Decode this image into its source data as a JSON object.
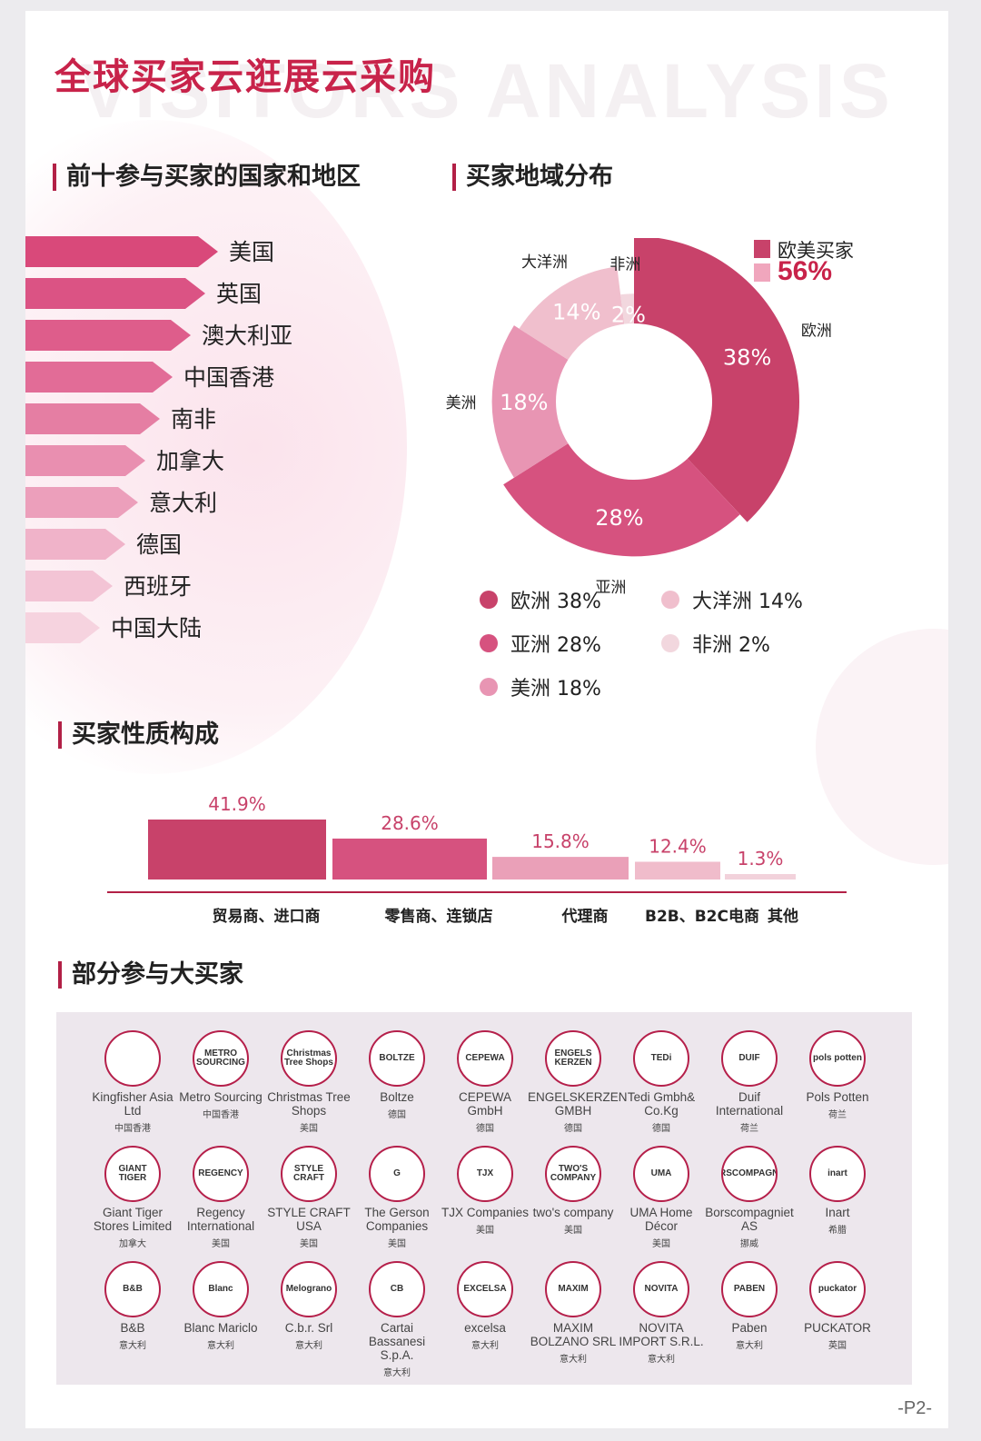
{
  "header": {
    "title": "全球买家云逛展云采购",
    "watermark": "VISITORS ANALYSIS"
  },
  "countries": {
    "heading": "前十参与买家的国家和地区",
    "items": [
      "美国",
      "英国",
      "澳大利亚",
      "中国香港",
      "南非",
      "加拿大",
      "意大利",
      "德国",
      "西班牙",
      "中国大陆"
    ]
  },
  "regions": {
    "heading": "买家地域分布",
    "badge_label": "欧美买家",
    "badge_value": "56%"
  },
  "buyer_types": {
    "heading": "买家性质构成"
  },
  "chart_data": [
    {
      "type": "pie",
      "style": "rose-donut",
      "labels": [
        "欧洲",
        "亚洲",
        "美洲",
        "大洋洲",
        "非洲"
      ],
      "values": [
        38,
        28,
        18,
        14,
        2
      ],
      "value_labels": [
        "38%",
        "28%",
        "18%",
        "14%",
        "2%"
      ],
      "legend": [
        "欧洲 38%",
        "亚洲 28%",
        "美洲 18%",
        "大洋洲 14%",
        "非洲 2%"
      ],
      "colors": [
        "#c8426a",
        "#d6527f",
        "#e895b3",
        "#f0bfcd",
        "#f2d7de"
      ]
    },
    {
      "type": "bar",
      "categories": [
        "贸易商、进口商",
        "零售商、连锁店",
        "代理商",
        "B2B、B2C电商",
        "其他"
      ],
      "values": [
        41.9,
        28.6,
        15.8,
        12.4,
        1.3
      ],
      "value_labels": [
        "41.9%",
        "28.6%",
        "15.8%",
        "12.4%",
        "1.3%"
      ],
      "colors": [
        "#c8426a",
        "#d6527f",
        "#eaa0b8",
        "#f0bccb",
        "#f2d2db"
      ]
    }
  ],
  "buyers": {
    "heading": "部分参与大买家",
    "items": [
      {
        "logo": "",
        "name": "Kingfisher Asia Ltd",
        "country": "中国香港"
      },
      {
        "logo": "METRO SOURCING",
        "name": "Metro Sourcing",
        "country": "中国香港"
      },
      {
        "logo": "Christmas Tree Shops",
        "name": "Christmas Tree Shops",
        "country": "美国"
      },
      {
        "logo": "BOLTZE",
        "name": "Boltze",
        "country": "德国"
      },
      {
        "logo": "CEPEWA",
        "name": "CEPEWA GmbH",
        "country": "德国"
      },
      {
        "logo": "ENGELS KERZEN",
        "name": "ENGELSKERZEN GMBH",
        "country": "德国"
      },
      {
        "logo": "TEDi",
        "name": "Tedi Gmbh& Co.Kg",
        "country": "德国"
      },
      {
        "logo": "DUIF",
        "name": "Duif International",
        "country": "荷兰"
      },
      {
        "logo": "pols potten",
        "name": "Pols Potten",
        "country": "荷兰"
      },
      {
        "logo": "GIANT TIGER",
        "name": "Giant Tiger Stores Limited",
        "country": "加拿大"
      },
      {
        "logo": "REGENCY",
        "name": "Regency International",
        "country": "美国"
      },
      {
        "logo": "STYLE CRAFT",
        "name": "STYLE CRAFT USA",
        "country": "美国"
      },
      {
        "logo": "G",
        "name": "The Gerson Companies",
        "country": "美国"
      },
      {
        "logo": "TJX",
        "name": "TJX Companies",
        "country": "美国"
      },
      {
        "logo": "TWO'S COMPANY",
        "name": "two's company",
        "country": "美国"
      },
      {
        "logo": "UMA",
        "name": "UMA Home Décor",
        "country": "美国"
      },
      {
        "logo": "BORSCOMPAGNIET",
        "name": "Borscompagniet AS",
        "country": "挪威"
      },
      {
        "logo": "inart",
        "name": "Inart",
        "country": "希腊"
      },
      {
        "logo": "B&B",
        "name": "B&B",
        "country": "意大利"
      },
      {
        "logo": "Blanc",
        "name": "Blanc Mariclo",
        "country": "意大利"
      },
      {
        "logo": "Melograno",
        "name": "C.b.r. Srl",
        "country": "意大利"
      },
      {
        "logo": "CB",
        "name": "Cartai Bassanesi S.p.A.",
        "country": "意大利"
      },
      {
        "logo": "EXCELSA",
        "name": "excelsa",
        "country": "意大利"
      },
      {
        "logo": "MAXIM",
        "name": "MAXIM BOLZANO SRL",
        "country": "意大利"
      },
      {
        "logo": "NOVITA",
        "name": "NOVITA IMPORT S.R.L.",
        "country": "意大利"
      },
      {
        "logo": "PABEN",
        "name": "Paben",
        "country": "意大利"
      },
      {
        "logo": "puckator",
        "name": "PUCKATOR",
        "country": "英国"
      }
    ]
  },
  "footer": {
    "page": "-P2-"
  }
}
